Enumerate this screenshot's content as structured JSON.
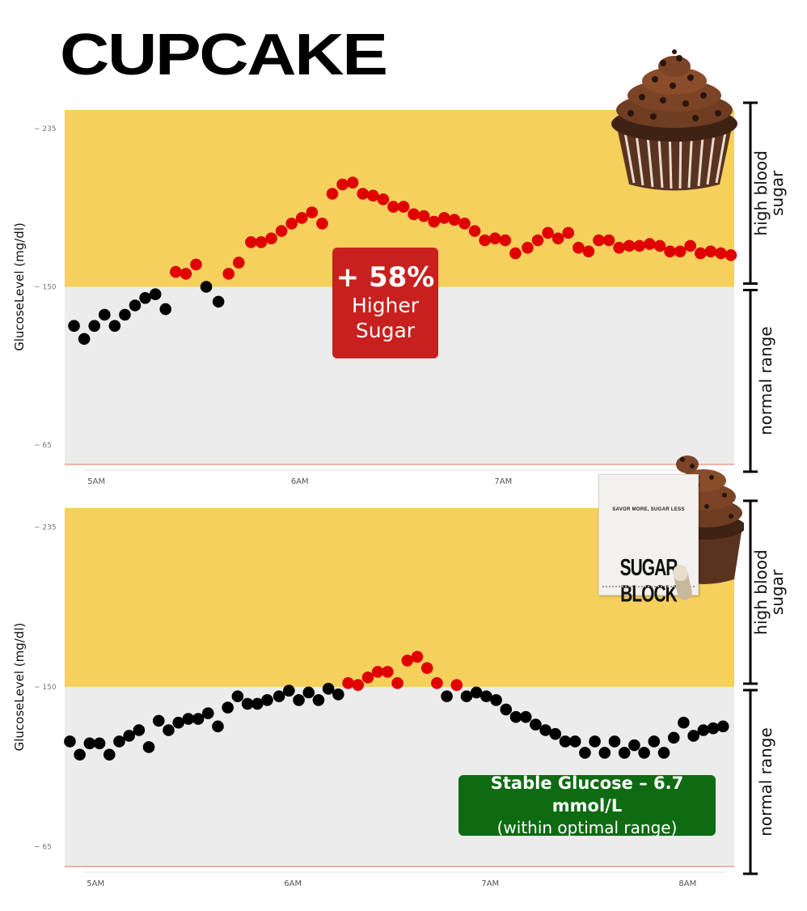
{
  "title": "CUPCAKE",
  "colors": {
    "high_zone": "#f5d05c",
    "normal_zone": "#ececec",
    "dot_normal": "#000000",
    "dot_high": "#e00000",
    "badge_red": "#c8201e",
    "badge_green": "#0f6b12",
    "baseline": "#f0b4a0"
  },
  "icons": [
    "cupcake-image",
    "sugar-block-box-image"
  ],
  "badges": {
    "top": {
      "line1": "+ 58%",
      "line2": "Higher",
      "line3": "Sugar"
    },
    "bottom": {
      "line1": "Stable Glucose – 6.7 mmol/L",
      "line2": "(within optimal range)"
    }
  },
  "product": {
    "tagline": "SAVOR MORE, SUGAR LESS",
    "brand": "SUGAR BLOCK"
  },
  "chart_data": [
    {
      "type": "scatter",
      "ylabel": "GlucoseLevel (mg/dl)",
      "yticks": [
        65,
        150,
        235
      ],
      "ytick_labels": [
        "~ 65",
        "~ 150",
        "~ 235"
      ],
      "ylim": [
        55,
        245
      ],
      "xtick_labels": [
        "5AM",
        "6AM",
        "7AM"
      ],
      "xticks": [
        5,
        6,
        7
      ],
      "xlim": [
        4.86,
        8.12
      ],
      "zones": [
        {
          "label": "high blood sugar",
          "from": 150,
          "to": 245
        },
        {
          "label": "normal range",
          "from": 55,
          "to": 150
        }
      ],
      "threshold": 150,
      "points_x": [
        4.89,
        4.94,
        4.99,
        5.04,
        5.09,
        5.14,
        5.19,
        5.24,
        5.29,
        5.34,
        5.39,
        5.44,
        5.49,
        5.54,
        5.6,
        5.65,
        5.7,
        5.76,
        5.81,
        5.86,
        5.91,
        5.96,
        6.01,
        6.06,
        6.11,
        6.16,
        6.21,
        6.26,
        6.31,
        6.36,
        6.41,
        6.46,
        6.51,
        6.56,
        6.61,
        6.66,
        6.71,
        6.76,
        6.81,
        6.86,
        6.91,
        6.96,
        7.01,
        7.06,
        7.12,
        7.17,
        7.22,
        7.27,
        7.32,
        7.37,
        7.42,
        7.47,
        7.52,
        7.57,
        7.62,
        7.67,
        7.72,
        7.77,
        7.82,
        7.87,
        7.92,
        7.97,
        8.02,
        8.07,
        8.12
      ],
      "points_y": [
        129,
        122,
        129,
        135,
        129,
        135,
        140,
        144,
        146,
        138,
        158,
        157,
        162,
        150,
        142,
        157,
        163,
        174,
        174,
        176,
        180,
        184,
        187,
        190,
        184,
        200,
        205,
        206,
        200,
        199,
        197,
        193,
        193,
        189,
        188,
        185,
        187,
        186,
        184,
        180,
        175,
        176,
        175,
        168,
        171,
        175,
        179,
        176,
        179,
        171,
        169,
        175,
        175,
        171,
        172,
        172,
        173,
        172,
        169,
        169,
        172,
        168,
        169,
        168,
        167
      ],
      "series_colors_rule": "red above threshold, black within normal range",
      "annotation": "+ 58% Higher Sugar"
    },
    {
      "type": "scatter",
      "ylabel": "GlucoseLevel (mg/dl)",
      "yticks": [
        65,
        150,
        235
      ],
      "ytick_labels": [
        "~ 65",
        "~ 150",
        "~ 235"
      ],
      "ylim": [
        55,
        245
      ],
      "xtick_labels": [
        "5AM",
        "6AM",
        "7AM",
        "8AM"
      ],
      "xticks": [
        5,
        6,
        7,
        8
      ],
      "xlim": [
        4.86,
        8.22
      ],
      "zones": [
        {
          "label": "high blood sugar",
          "from": 150,
          "to": 245
        },
        {
          "label": "normal range",
          "from": 55,
          "to": 150
        }
      ],
      "threshold": 150,
      "points_x": [
        4.87,
        4.92,
        4.97,
        5.02,
        5.07,
        5.12,
        5.17,
        5.22,
        5.27,
        5.32,
        5.37,
        5.42,
        5.47,
        5.52,
        5.57,
        5.62,
        5.67,
        5.72,
        5.77,
        5.82,
        5.87,
        5.93,
        5.98,
        6.03,
        6.08,
        6.13,
        6.18,
        6.23,
        6.28,
        6.33,
        6.38,
        6.43,
        6.48,
        6.53,
        6.58,
        6.63,
        6.68,
        6.73,
        6.78,
        6.83,
        6.88,
        6.93,
        6.98,
        7.03,
        7.08,
        7.13,
        7.18,
        7.23,
        7.28,
        7.33,
        7.38,
        7.43,
        7.48,
        7.53,
        7.58,
        7.63,
        7.68,
        7.73,
        7.78,
        7.83,
        7.88,
        7.93,
        7.98,
        8.03,
        8.08,
        8.13,
        8.18
      ],
      "points_y": [
        121,
        114,
        120,
        120,
        114,
        121,
        124,
        127,
        118,
        132,
        127,
        131,
        133,
        133,
        136,
        129,
        139,
        145,
        141,
        141,
        143,
        145,
        148,
        143,
        147,
        143,
        149,
        146,
        152,
        151,
        155,
        158,
        158,
        152,
        164,
        166,
        160,
        152,
        145,
        151,
        145,
        147,
        145,
        143,
        138,
        134,
        134,
        130,
        127,
        125,
        121,
        121,
        115,
        121,
        115,
        121,
        115,
        119,
        115,
        121,
        115,
        123,
        131,
        124,
        127,
        128,
        129
      ],
      "series_colors_rule": "red above threshold, black within normal range",
      "annotation": "Stable Glucose – 6.7 mmol/L (within optimal range)"
    }
  ]
}
